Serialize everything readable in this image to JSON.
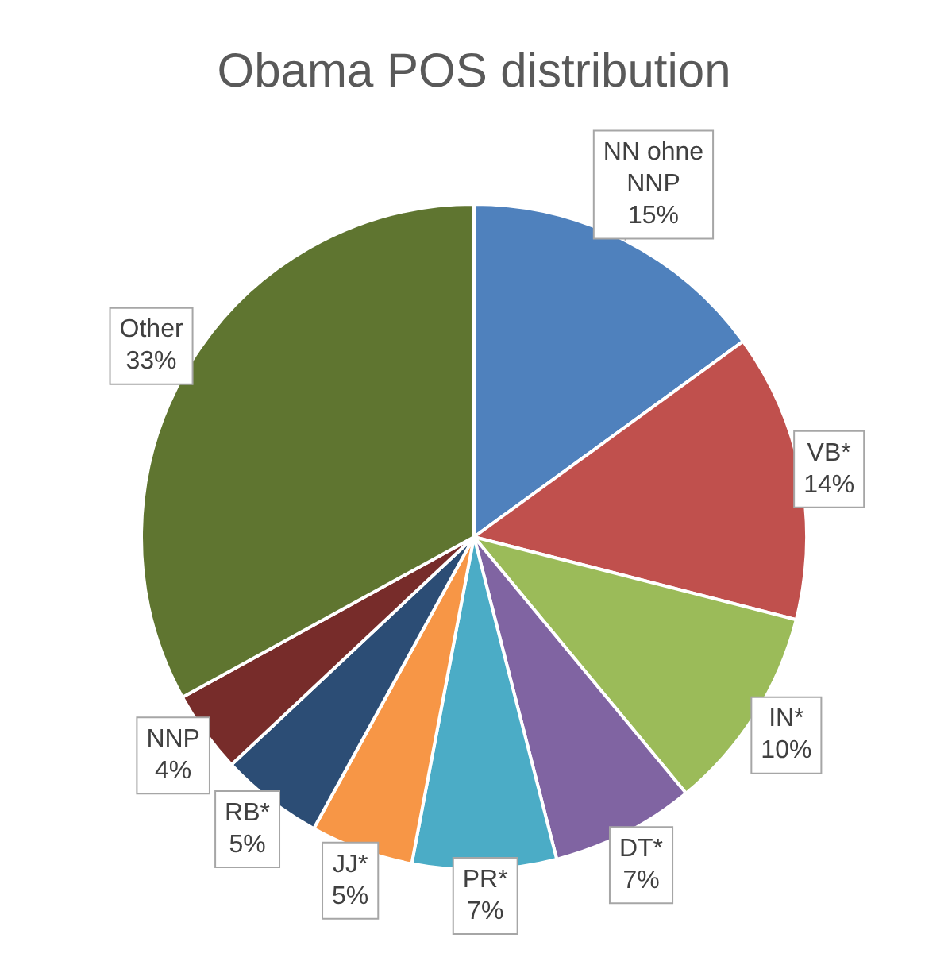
{
  "chart_data": {
    "type": "pie",
    "title": "Obama POS distribution",
    "categories": [
      "NN ohne NNP",
      "VB*",
      "IN*",
      "DT*",
      "PR*",
      "JJ*",
      "RB*",
      "NNP",
      "Other"
    ],
    "values": [
      15,
      14,
      10,
      7,
      7,
      5,
      5,
      4,
      33
    ],
    "value_labels": [
      "15%",
      "14%",
      "10%",
      "7%",
      "7%",
      "5%",
      "5%",
      "4%",
      "33%"
    ],
    "colors": [
      "#4f81bd",
      "#c0504d",
      "#9bbb59",
      "#8064a2",
      "#4bacc6",
      "#f79646",
      "#2c4d75",
      "#772c2a",
      "#5f7530"
    ],
    "legend": false
  }
}
